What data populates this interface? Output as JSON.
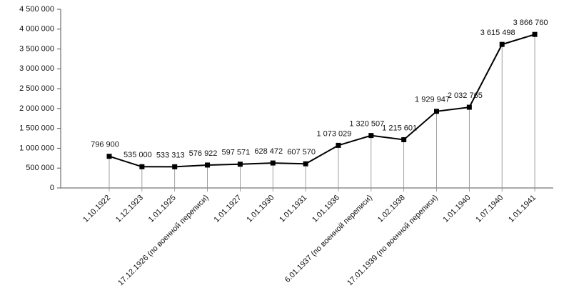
{
  "chart_data": {
    "type": "line",
    "categories": [
      "1.10.1922",
      "1.12.1923",
      "1.01.1925",
      "17.12.1926 (по военной переписи)",
      "1.01.1927",
      "1.01.1930",
      "1.01.1931",
      "1.01.1936",
      "6.01.1937 (по военной переписи)",
      "1.02.1938",
      "17.01.1939 (по военной переписи)",
      "1.01.1940",
      "1.07.1940",
      "1.01.1941"
    ],
    "values": [
      796900,
      535000,
      533313,
      576922,
      597571,
      628472,
      607570,
      1073029,
      1320507,
      1215601,
      1929947,
      2032765,
      3615498,
      3866760
    ],
    "value_labels": [
      "796 900",
      "535 000",
      "533 313",
      "576 922",
      "597 571",
      "628 472",
      "607 570",
      "1 073 029",
      "1 320 507",
      "1 215 601",
      "1 929 947",
      "2 032 765",
      "3 615 498",
      "3 866 760"
    ],
    "color": "#000000",
    "ylim": [
      0,
      4500000
    ],
    "yticks": [
      0,
      {
        "value": 500000,
        "label": "500 000"
      },
      {
        "value": 1000000,
        "label": "1 000 000"
      },
      {
        "value": 1500000,
        "label": "1 500 000"
      },
      {
        "value": 2000000,
        "label": "2 000 000"
      },
      {
        "value": 2500000,
        "label": "2 500 000"
      },
      {
        "value": 3000000,
        "label": "3 000 000"
      },
      {
        "value": 3500000,
        "label": "3 500 000"
      },
      {
        "value": 4000000,
        "label": "4 000 000"
      },
      {
        "value": 4500000,
        "label": "4 500 000"
      }
    ]
  }
}
